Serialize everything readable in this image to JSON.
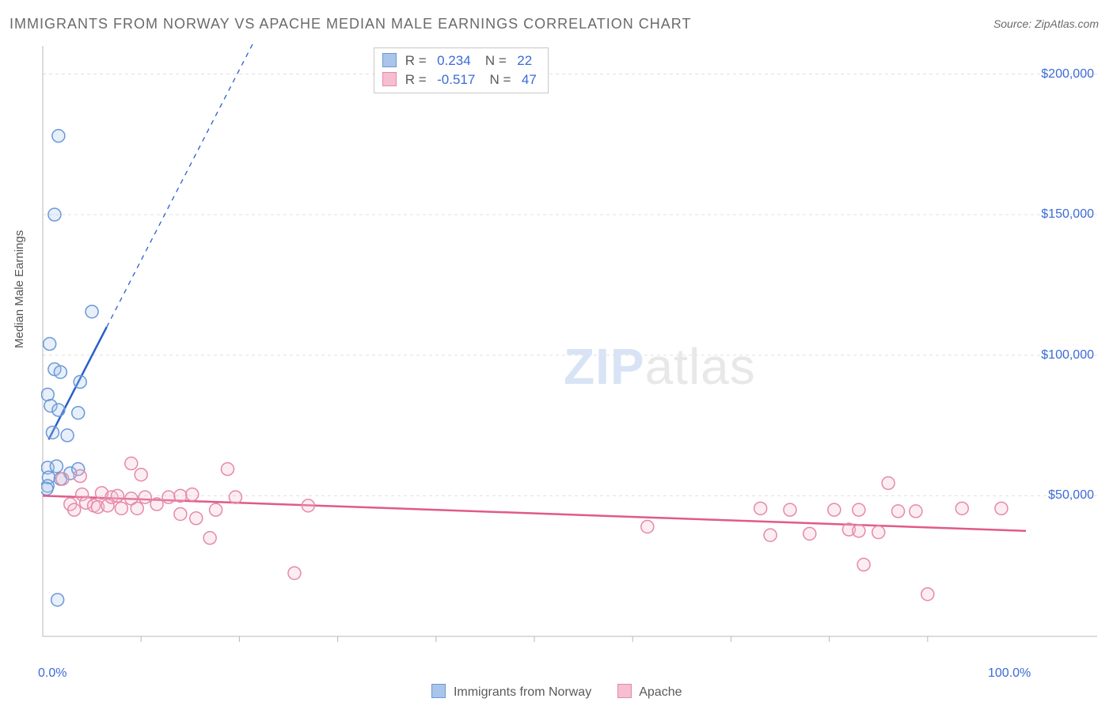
{
  "title": "IMMIGRANTS FROM NORWAY VS APACHE MEDIAN MALE EARNINGS CORRELATION CHART",
  "source": "Source: ZipAtlas.com",
  "ylabel": "Median Male Earnings",
  "watermark_a": "ZIP",
  "watermark_b": "atlas",
  "chart": {
    "type": "scatter-correlation",
    "background_color": "#ffffff",
    "grid_color": "#e0e0e0",
    "axis_color": "#b8b8b8",
    "tick_color": "#b8b8b8",
    "x_min": 0.0,
    "x_max": 100.0,
    "y_min": 0,
    "y_max": 210000,
    "y_ticks": [
      50000,
      100000,
      150000,
      200000
    ],
    "y_tick_labels": [
      "$50,000",
      "$100,000",
      "$150,000",
      "$200,000"
    ],
    "x_tick_labels": {
      "left": "0.0%",
      "right": "100.0%"
    },
    "x_minor_ticks": [
      10,
      20,
      30,
      40,
      50,
      60,
      70,
      80,
      90
    ],
    "marker_radius": 8,
    "marker_fill_opacity": 0.28,
    "marker_stroke_width": 1.5,
    "label_color": "#3b6bd6",
    "label_fontsize": 16,
    "series": [
      {
        "name": "Immigrants from Norway",
        "color_stroke": "#6a98d8",
        "color_fill": "#a9c5ea",
        "R": "0.234",
        "N": "22",
        "trend": {
          "x1": 0.6,
          "y1": 70000,
          "x2": 6.5,
          "y2": 110000,
          "color": "#2a5fc9",
          "width": 2.5,
          "extrap_to_x": 23.5,
          "extrap_dash": "6,6"
        },
        "points": [
          [
            1.6,
            178000
          ],
          [
            1.2,
            150000
          ],
          [
            5.0,
            115500
          ],
          [
            0.7,
            104000
          ],
          [
            1.2,
            95000
          ],
          [
            1.8,
            94000
          ],
          [
            3.8,
            90500
          ],
          [
            0.5,
            86000
          ],
          [
            0.8,
            82000
          ],
          [
            1.6,
            80500
          ],
          [
            3.6,
            79500
          ],
          [
            1.0,
            72500
          ],
          [
            2.5,
            71500
          ],
          [
            0.5,
            60000
          ],
          [
            1.4,
            60500
          ],
          [
            2.8,
            58000
          ],
          [
            3.6,
            59500
          ],
          [
            0.6,
            56500
          ],
          [
            1.8,
            56000
          ],
          [
            0.5,
            53500
          ],
          [
            0.4,
            52500
          ],
          [
            1.5,
            13000
          ]
        ]
      },
      {
        "name": "Apache",
        "color_stroke": "#e589a7",
        "color_fill": "#f6bed0",
        "R": "-0.517",
        "N": "47",
        "trend": {
          "x1": 0.0,
          "y1": 50000,
          "x2": 100.0,
          "y2": 37500,
          "color": "#e05a8a",
          "width": 2.5
        },
        "points": [
          [
            2.0,
            56000
          ],
          [
            3.8,
            57000
          ],
          [
            9.0,
            61500
          ],
          [
            10.0,
            57500
          ],
          [
            2.8,
            47000
          ],
          [
            3.2,
            45000
          ],
          [
            4.0,
            50500
          ],
          [
            4.4,
            47500
          ],
          [
            5.2,
            46500
          ],
          [
            5.6,
            46000
          ],
          [
            6.0,
            51000
          ],
          [
            6.6,
            46500
          ],
          [
            7.0,
            49500
          ],
          [
            7.6,
            50000
          ],
          [
            8.0,
            45500
          ],
          [
            9.0,
            49000
          ],
          [
            9.6,
            45500
          ],
          [
            10.4,
            49500
          ],
          [
            11.6,
            47000
          ],
          [
            12.8,
            49500
          ],
          [
            14.0,
            43500
          ],
          [
            14.0,
            50000
          ],
          [
            15.6,
            42000
          ],
          [
            15.2,
            50500
          ],
          [
            17.0,
            35000
          ],
          [
            17.6,
            45000
          ],
          [
            18.8,
            59500
          ],
          [
            19.6,
            49500
          ],
          [
            25.6,
            22500
          ],
          [
            27.0,
            46500
          ],
          [
            61.5,
            39000
          ],
          [
            73.0,
            45500
          ],
          [
            74.0,
            36000
          ],
          [
            76.0,
            45000
          ],
          [
            78.0,
            36500
          ],
          [
            80.5,
            45000
          ],
          [
            82.0,
            38000
          ],
          [
            83.0,
            45000
          ],
          [
            83.0,
            37500
          ],
          [
            83.5,
            25500
          ],
          [
            85.0,
            37000
          ],
          [
            86.0,
            54500
          ],
          [
            87.0,
            44500
          ],
          [
            88.8,
            44500
          ],
          [
            90.0,
            15000
          ],
          [
            93.5,
            45500
          ],
          [
            97.5,
            45500
          ]
        ]
      }
    ]
  },
  "legend_bottom": [
    {
      "label": "Immigrants from Norway",
      "stroke": "#6a98d8",
      "fill": "#a9c5ea"
    },
    {
      "label": "Apache",
      "stroke": "#e589a7",
      "fill": "#f6bed0"
    }
  ]
}
